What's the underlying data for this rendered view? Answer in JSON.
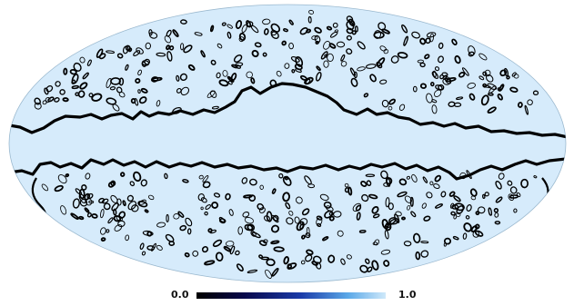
{
  "map": {
    "projection": "mollweide",
    "background_fill": "#d6ebfb",
    "contour_color": "#000000"
  },
  "colorbar": {
    "min_label": "0.0",
    "max_label": "1.0",
    "colors": [
      "#000000",
      "#08084a",
      "#1a3aa8",
      "#5aa8e8",
      "#cfe9fa"
    ]
  }
}
